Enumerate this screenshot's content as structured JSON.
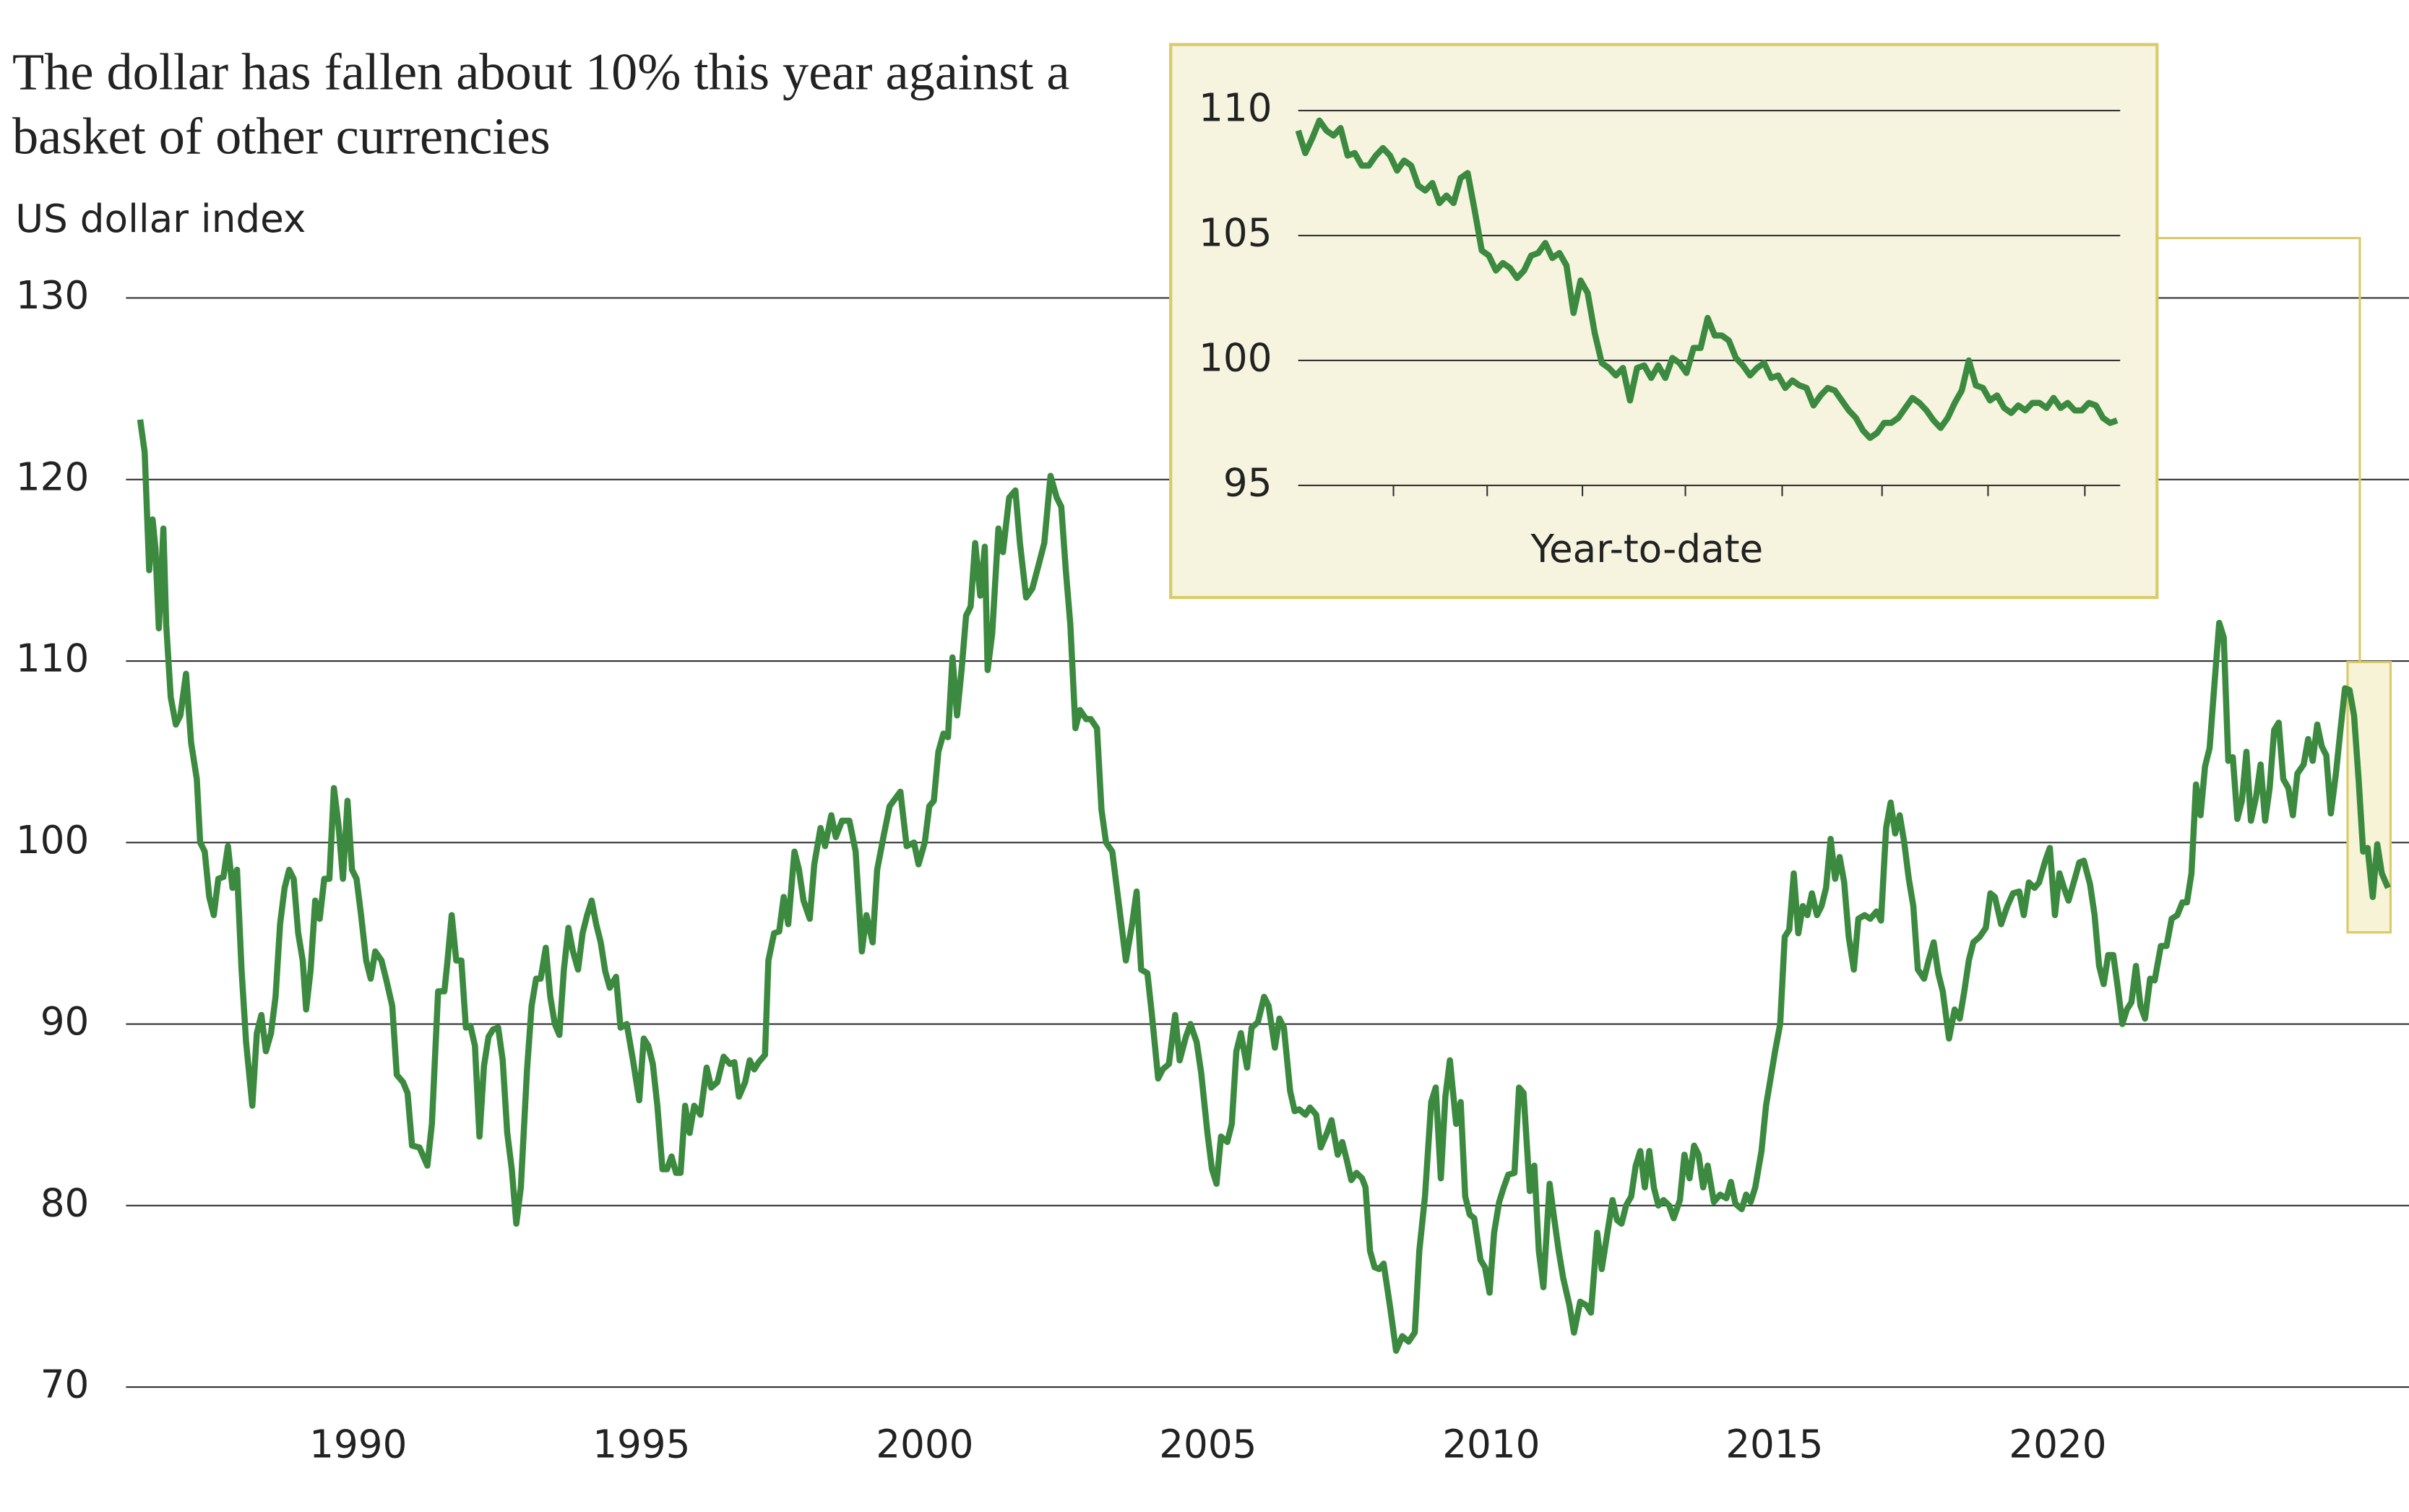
{
  "chart_data": [
    {
      "type": "line",
      "title": "The dollar has fallen about 10% this year against a basket of other currencies",
      "y_label": "US dollar index",
      "color": "#3b8a3f",
      "xlim": [
        1985.9,
        2026.2
      ],
      "xticks": [
        1990,
        1995,
        2000,
        2005,
        2010,
        2015,
        2020
      ],
      "ylim": [
        70,
        130
      ],
      "yticks": [
        70,
        80,
        90,
        100,
        110,
        120,
        130
      ],
      "grid": true,
      "x": [
        1986.15,
        1986.23,
        1986.31,
        1986.37,
        1986.42,
        1986.48,
        1986.56,
        1986.61,
        1986.69,
        1986.78,
        1986.86,
        1986.96,
        1987.05,
        1987.15,
        1987.21,
        1987.29,
        1987.37,
        1987.45,
        1987.53,
        1987.62,
        1987.7,
        1987.78,
        1987.86,
        1987.94,
        1988.02,
        1988.13,
        1988.21,
        1988.29,
        1988.37,
        1988.46,
        1988.54,
        1988.62,
        1988.7,
        1988.78,
        1988.86,
        1988.94,
        1989.02,
        1989.08,
        1989.16,
        1989.24,
        1989.32,
        1989.4,
        1989.49,
        1989.57,
        1989.65,
        1989.73,
        1989.81,
        1989.89,
        1989.97,
        1990.05,
        1990.14,
        1990.22,
        1990.3,
        1990.41,
        1990.49,
        1990.6,
        1990.68,
        1990.79,
        1990.87,
        1990.95,
        1991.08,
        1991.22,
        1991.3,
        1991.41,
        1991.52,
        1991.57,
        1991.65,
        1991.73,
        1991.82,
        1991.9,
        1991.98,
        1992.06,
        1992.14,
        1992.22,
        1992.3,
        1992.38,
        1992.47,
        1992.55,
        1992.63,
        1992.71,
        1992.79,
        1992.87,
        1992.98,
        1993.06,
        1993.14,
        1993.22,
        1993.31,
        1993.39,
        1993.47,
        1993.55,
        1993.63,
        1993.71,
        1993.79,
        1993.88,
        1993.96,
        1994.04,
        1994.12,
        1994.2,
        1994.28,
        1994.36,
        1994.44,
        1994.55,
        1994.63,
        1994.74,
        1994.85,
        1994.96,
        1995.04,
        1995.12,
        1995.2,
        1995.28,
        1995.37,
        1995.45,
        1995.53,
        1995.61,
        1995.69,
        1995.77,
        1995.85,
        1995.93,
        1996.04,
        1996.15,
        1996.23,
        1996.34,
        1996.45,
        1996.56,
        1996.64,
        1996.72,
        1996.83,
        1996.91,
        1996.99,
        1997.07,
        1997.18,
        1997.24,
        1997.34,
        1997.43,
        1997.51,
        1997.59,
        1997.7,
        1997.78,
        1997.86,
        1997.97,
        1998.05,
        1998.16,
        1998.24,
        1998.35,
        1998.43,
        1998.54,
        1998.67,
        1998.78,
        1998.89,
        1998.97,
        1999.08,
        1999.16,
        1999.27,
        1999.38,
        1999.57,
        1999.68,
        1999.81,
        1999.89,
        2000.0,
        2000.08,
        2000.16,
        2000.24,
        2000.33,
        2000.41,
        2000.49,
        2000.57,
        2000.65,
        2000.73,
        2000.81,
        2000.89,
        2000.98,
        2001.06,
        2001.11,
        2001.19,
        2001.3,
        2001.38,
        2001.49,
        2001.6,
        2001.68,
        2001.79,
        2001.9,
        2002.01,
        2002.11,
        2002.22,
        2002.33,
        2002.41,
        2002.49,
        2002.57,
        2002.66,
        2002.74,
        2002.85,
        2002.93,
        2003.04,
        2003.12,
        2003.2,
        2003.31,
        2003.39,
        2003.47,
        2003.55,
        2003.66,
        2003.74,
        2003.82,
        2003.93,
        2004.01,
        2004.12,
        2004.2,
        2004.31,
        2004.42,
        2004.5,
        2004.61,
        2004.69,
        2004.8,
        2004.88,
        2004.99,
        2005.07,
        2005.15,
        2005.23,
        2005.34,
        2005.42,
        2005.5,
        2005.58,
        2005.69,
        2005.77,
        2005.88,
        2005.99,
        2006.07,
        2006.18,
        2006.26,
        2006.34,
        2006.45,
        2006.53,
        2006.61,
        2006.72,
        2006.8,
        2006.91,
        2006.99,
        2007.1,
        2007.18,
        2007.29,
        2007.37,
        2007.45,
        2007.53,
        2007.62,
        2007.72,
        2007.78,
        2007.86,
        2007.94,
        2008.02,
        2008.1,
        2008.21,
        2008.32,
        2008.43,
        2008.54,
        2008.65,
        2008.73,
        2008.83,
        2008.94,
        2009.02,
        2009.11,
        2009.19,
        2009.27,
        2009.38,
        2009.46,
        2009.54,
        2009.62,
        2009.7,
        2009.81,
        2009.89,
        2009.97,
        2010.05,
        2010.14,
        2010.22,
        2010.3,
        2010.41,
        2010.49,
        2010.57,
        2010.68,
        2010.76,
        2010.84,
        2010.92,
        2011.03,
        2011.11,
        2011.19,
        2011.27,
        2011.38,
        2011.46,
        2011.57,
        2011.68,
        2011.76,
        2011.87,
        2011.95,
        2012.06,
        2012.14,
        2012.22,
        2012.3,
        2012.38,
        2012.47,
        2012.55,
        2012.63,
        2012.71,
        2012.79,
        2012.87,
        2012.95,
        2013.04,
        2013.14,
        2013.22,
        2013.33,
        2013.41,
        2013.5,
        2013.58,
        2013.66,
        2013.74,
        2013.82,
        2013.93,
        2014.04,
        2014.15,
        2014.23,
        2014.31,
        2014.42,
        2014.5,
        2014.58,
        2014.66,
        2014.77,
        2014.85,
        2014.93,
        2015.01,
        2015.1,
        2015.18,
        2015.26,
        2015.34,
        2015.42,
        2015.5,
        2015.58,
        2015.66,
        2015.75,
        2015.83,
        2015.91,
        2015.99,
        2016.07,
        2016.15,
        2016.23,
        2016.31,
        2016.4,
        2016.48,
        2016.59,
        2016.69,
        2016.8,
        2016.88,
        2016.97,
        2017.05,
        2017.13,
        2017.21,
        2017.29,
        2017.37,
        2017.45,
        2017.53,
        2017.64,
        2017.72,
        2017.81,
        2017.89,
        2017.97,
        2018.08,
        2018.18,
        2018.27,
        2018.35,
        2018.43,
        2018.51,
        2018.62,
        2018.73,
        2018.81,
        2018.89,
        2019.0,
        2019.11,
        2019.21,
        2019.32,
        2019.4,
        2019.49,
        2019.59,
        2019.67,
        2019.78,
        2019.86,
        2019.95,
        2020.03,
        2020.11,
        2020.19,
        2020.3,
        2020.38,
        2020.46,
        2020.57,
        2020.65,
        2020.73,
        2020.81,
        2020.89,
        2020.98,
        2021.06,
        2021.14,
        2021.22,
        2021.3,
        2021.38,
        2021.46,
        2021.54,
        2021.63,
        2021.71,
        2021.82,
        2021.92,
        2022.01,
        2022.11,
        2022.2,
        2022.28,
        2022.36,
        2022.44,
        2022.52,
        2022.6,
        2022.68,
        2022.76,
        2022.85,
        2022.93,
        2023.01,
        2023.09,
        2023.17,
        2023.25,
        2023.33,
        2023.41,
        2023.5,
        2023.58,
        2023.66,
        2023.74,
        2023.82,
        2023.9,
        2023.98,
        2024.07,
        2024.15,
        2024.23,
        2024.34,
        2024.42,
        2024.5,
        2024.58,
        2024.66,
        2024.74,
        2024.82,
        2024.91,
        2024.99,
        2025.07,
        2025.15,
        2025.23,
        2025.31,
        2025.39,
        2025.47,
        2025.56,
        2025.64,
        2025.72,
        2025.83
      ],
      "values": [
        123.3,
        121.5,
        115,
        117.8,
        116.2,
        111.8,
        117.3,
        112,
        108,
        106.5,
        107,
        109.3,
        105.5,
        103.5,
        100,
        99.5,
        97,
        96,
        98,
        98.1,
        99.8,
        97.5,
        98.5,
        93,
        89,
        85.5,
        89.5,
        90.5,
        88.5,
        89.5,
        91.5,
        95.5,
        97.5,
        98.5,
        98,
        95,
        93.5,
        90.8,
        93,
        96.8,
        95.8,
        98,
        98,
        103,
        101,
        98,
        102.3,
        98.5,
        98,
        96,
        93.5,
        92.5,
        94,
        93.5,
        92.5,
        91,
        87.2,
        86.8,
        86.2,
        83.3,
        83.2,
        82.2,
        84.5,
        91.8,
        91.8,
        93.3,
        96,
        93.5,
        93.5,
        89.8,
        89.9,
        88.8,
        83.8,
        87.7,
        89.3,
        89.7,
        89.8,
        88,
        84,
        82,
        79,
        81,
        87.5,
        91,
        92.5,
        92.5,
        94.2,
        91.5,
        90,
        89.4,
        93,
        95.3,
        94,
        93,
        95,
        96,
        96.8,
        95.5,
        94.5,
        92.9,
        92,
        92.6,
        89.8,
        90,
        88,
        85.8,
        89.2,
        88.8,
        87.8,
        85.5,
        82,
        82,
        82.7,
        81.8,
        81.8,
        85.5,
        84,
        85.5,
        85,
        87.6,
        86.5,
        86.8,
        88.2,
        87.8,
        87.9,
        86,
        86.8,
        88,
        87.5,
        87.9,
        88.3,
        93.5,
        95,
        95.1,
        97,
        95.5,
        99.5,
        98.5,
        96.8,
        95.8,
        98.8,
        100.8,
        99.8,
        101.5,
        100.3,
        101.2,
        101.2,
        99.5,
        94,
        96,
        94.5,
        98.5,
        100.3,
        102,
        102.8,
        99.8,
        100,
        98.8,
        100,
        102,
        102.3,
        105,
        106,
        105.8,
        110.2,
        107,
        109.5,
        112.5,
        113,
        116.5,
        113.6,
        116.3,
        109.5,
        111.5,
        117.3,
        116,
        119,
        119.4,
        116.5,
        113.5,
        114,
        115.3,
        116.5,
        120.2,
        119,
        118.5,
        115,
        112,
        106.3,
        107.3,
        106.8,
        106.8,
        106.3,
        101.8,
        100,
        99.5,
        97.5,
        95.5,
        93.5,
        95.5,
        97.3,
        93,
        92.8,
        90.5,
        87,
        87.5,
        87.8,
        90.5,
        88,
        89.3,
        90,
        89,
        87.3,
        84,
        82,
        81.2,
        83.8,
        83.5,
        84.5,
        88.5,
        89.5,
        87.6,
        89.8,
        90.1,
        91.5,
        91,
        88.7,
        90.3,
        89.8,
        86.3,
        85.2,
        85.3,
        85,
        85.4,
        85,
        83.2,
        84,
        84.7,
        82.8,
        83.5,
        82.5,
        81.4,
        81.8,
        81.5,
        81,
        77.5,
        76.6,
        76.5,
        76.8,
        74.5,
        72,
        72.8,
        72.5,
        73,
        77.5,
        80.5,
        85.7,
        86.5,
        81.5,
        86,
        88,
        84.5,
        85.7,
        80.5,
        79.5,
        79.3,
        77,
        76.6,
        75.2,
        78.5,
        80.2,
        81,
        81.7,
        81.8,
        86.5,
        86.2,
        80.8,
        82.2,
        77.5,
        75.5,
        81.2,
        79.3,
        77.5,
        76,
        74.5,
        73,
        74.7,
        74.5,
        74.1,
        78.5,
        76.5,
        78.7,
        80.3,
        79.2,
        79,
        80,
        80.5,
        82.2,
        83,
        81,
        83,
        81,
        80,
        80.3,
        80,
        79.3,
        80.3,
        82.8,
        81.5,
        83.3,
        82.8,
        81,
        82.2,
        80.2,
        80.6,
        80.4,
        81.3,
        80.1,
        79.8,
        80.6,
        80.2,
        81,
        83,
        85.5,
        87,
        88.5,
        90,
        94.8,
        95.2,
        98.3,
        95,
        96.5,
        96,
        97.2,
        96,
        96.5,
        97.5,
        100.2,
        98,
        99.2,
        97.8,
        94.8,
        93,
        95.8,
        96,
        95.8,
        96.2,
        95.7,
        100.8,
        102.2,
        100.5,
        101.5,
        100,
        98,
        96.5,
        93,
        92.5,
        93.5,
        94.5,
        92.8,
        91.8,
        89.2,
        90.8,
        90.3,
        91.8,
        93.5,
        94.5,
        94.8,
        95.3,
        97.2,
        97,
        95.5,
        96.5,
        97.2,
        97.3,
        96,
        97.8,
        97.5,
        97.8,
        99,
        99.7,
        96,
        98.3,
        97.5,
        96.8,
        98,
        98.9,
        99,
        97.7,
        96,
        93.2,
        92.2,
        93.8,
        93.8,
        92,
        90,
        90.8,
        91.2,
        93.2,
        91,
        90.3,
        92.5,
        92.4,
        94.3,
        94.3,
        95.8,
        96,
        96.7,
        96.7,
        98.3,
        103.2,
        101.5,
        104.2,
        105.2,
        108.5,
        112.1,
        111.3,
        104.5,
        104.7,
        101.3,
        102.3,
        105,
        101.2,
        102.5,
        104.3,
        101.2,
        103,
        106.2,
        106.6,
        103.5,
        103,
        101.5,
        103.8,
        104.3,
        105.7,
        104.5,
        106.5,
        105.3,
        104.8,
        101.6,
        103.8,
        106.2,
        108.5,
        108.4,
        107,
        103.5,
        99.5,
        99.7,
        97,
        99.9,
        98.3,
        97.5
      ]
    },
    {
      "type": "line",
      "x_label": "Year-to-date",
      "color": "#3b8a3f",
      "ylim": [
        95,
        110
      ],
      "yticks": [
        95,
        100,
        105,
        110
      ],
      "grid": true,
      "values": [
        109.2,
        108.3,
        108.9,
        109.6,
        109.2,
        109.0,
        109.3,
        108.2,
        108.3,
        107.8,
        107.8,
        108.2,
        108.5,
        108.2,
        107.6,
        108.0,
        107.8,
        107.0,
        106.8,
        107.1,
        106.3,
        106.6,
        106.3,
        107.3,
        107.5,
        106.0,
        104.4,
        104.2,
        103.6,
        103.9,
        103.7,
        103.3,
        103.6,
        104.2,
        104.3,
        104.7,
        104.1,
        104.3,
        103.8,
        101.9,
        103.2,
        102.7,
        101.1,
        99.9,
        99.7,
        99.4,
        99.7,
        98.4,
        99.7,
        99.8,
        99.3,
        99.8,
        99.3,
        100.1,
        99.9,
        99.5,
        100.5,
        100.5,
        101.7,
        101.0,
        101.0,
        100.8,
        100.1,
        99.8,
        99.4,
        99.7,
        99.9,
        99.3,
        99.4,
        98.9,
        99.2,
        99.0,
        98.9,
        98.2,
        98.6,
        98.9,
        98.8,
        98.4,
        98.0,
        97.7,
        97.2,
        96.9,
        97.1,
        97.5,
        97.5,
        97.7,
        98.1,
        98.5,
        98.3,
        98.0,
        97.6,
        97.3,
        97.7,
        98.3,
        98.8,
        100.0,
        99.0,
        98.9,
        98.4,
        98.6,
        98.1,
        97.9,
        98.2,
        98.0,
        98.3,
        98.3,
        98.1,
        98.5,
        98.1,
        98.3,
        98.0,
        98.0,
        98.3,
        98.2,
        97.7,
        97.5,
        97.6
      ]
    }
  ]
}
